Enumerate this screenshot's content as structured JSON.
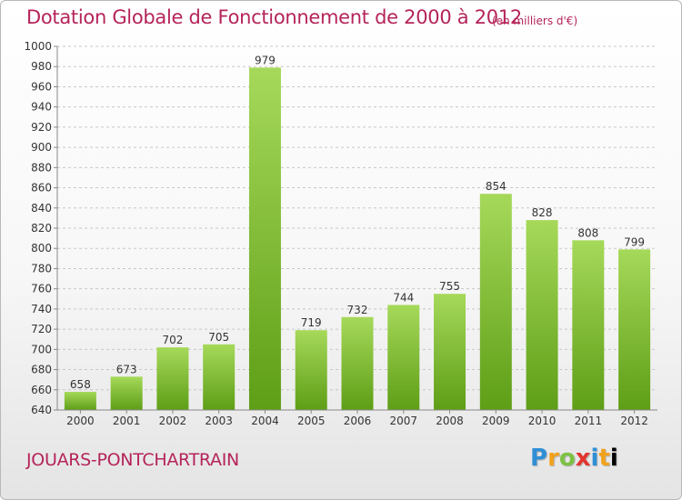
{
  "brand": {
    "letters": [
      "P",
      "r",
      "o",
      "x",
      "i",
      "t",
      "i"
    ],
    "text": "Proxiti",
    "colors": [
      "#2f8fd6",
      "#f2a21a",
      "#7cc243",
      "#e3342f"
    ]
  },
  "commune": "JOUARS-PONTCHARTRAIN",
  "colors": {
    "title": "#b5245a",
    "bar_top": "#a6d95a",
    "bar_bottom": "#5e9e16",
    "grid": "#c8c8c8"
  },
  "chart_data": {
    "type": "bar",
    "title": "Dotation Globale de Fonctionnement de 2000 à 2012",
    "unit": "(en milliers d'€)",
    "xlabel": "",
    "ylabel": "",
    "categories": [
      "2000",
      "2001",
      "2002",
      "2003",
      "2004",
      "2005",
      "2006",
      "2007",
      "2008",
      "2009",
      "2010",
      "2011",
      "2012"
    ],
    "values": [
      658,
      673,
      702,
      705,
      979,
      719,
      732,
      744,
      755,
      854,
      828,
      808,
      799
    ],
    "ylim": [
      640,
      1000
    ],
    "yticks": [
      "640",
      "660",
      "680",
      "700",
      "720",
      "740",
      "760",
      "780",
      "800",
      "820",
      "840",
      "860",
      "880",
      "900",
      "920",
      "940",
      "960",
      "980",
      "1000"
    ],
    "grid": "horizontal dashed",
    "legend": "none"
  }
}
